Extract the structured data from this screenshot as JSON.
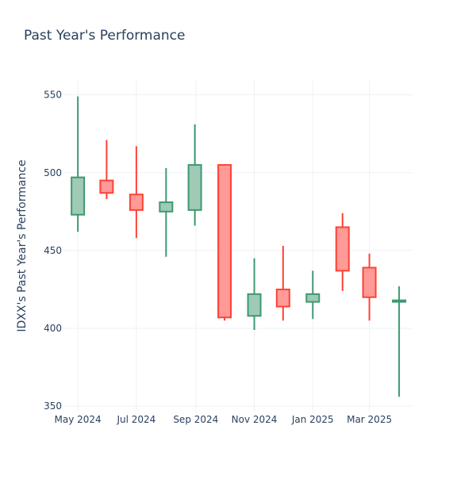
{
  "chart_data": {
    "type": "candlestick",
    "title": "Past Year's Performance",
    "xlabel": "",
    "ylabel": "IDXX's Past Year's Performance",
    "ylim": [
      346,
      560
    ],
    "yticks": [
      350,
      400,
      450,
      500,
      550
    ],
    "xticks": [
      {
        "label": "May 2024",
        "date": "2024-05-01"
      },
      {
        "label": "Jul 2024",
        "date": "2024-07-01"
      },
      {
        "label": "Sep 2024",
        "date": "2024-09-01"
      },
      {
        "label": "Nov 2024",
        "date": "2024-11-01"
      },
      {
        "label": "Jan 2025",
        "date": "2025-01-01"
      },
      {
        "label": "Mar 2025",
        "date": "2025-03-01"
      }
    ],
    "xrange": [
      "2024-04-16",
      "2025-04-15"
    ],
    "grid": true,
    "colors": {
      "increasing_line": "#3d9970",
      "increasing_fill": "#9ecab6",
      "decreasing_line": "#ff4136",
      "decreasing_fill": "#ff9a96",
      "text": "#2a3f5f",
      "grid": "#eef1f5"
    },
    "candles": [
      {
        "date": "2024-05-01",
        "open": 473,
        "high": 549,
        "low": 462,
        "close": 497
      },
      {
        "date": "2024-05-31",
        "open": 495,
        "high": 521,
        "low": 483,
        "close": 487
      },
      {
        "date": "2024-07-01",
        "open": 486,
        "high": 517,
        "low": 458,
        "close": 476
      },
      {
        "date": "2024-08-01",
        "open": 475,
        "high": 503,
        "low": 446,
        "close": 481
      },
      {
        "date": "2024-08-31",
        "open": 476,
        "high": 531,
        "low": 466,
        "close": 505
      },
      {
        "date": "2024-10-01",
        "open": 505,
        "high": 505,
        "low": 405,
        "close": 407
      },
      {
        "date": "2024-11-01",
        "open": 408,
        "high": 445,
        "low": 399,
        "close": 422
      },
      {
        "date": "2024-12-01",
        "open": 425,
        "high": 453,
        "low": 405,
        "close": 414
      },
      {
        "date": "2025-01-01",
        "open": 417,
        "high": 437,
        "low": 406,
        "close": 422
      },
      {
        "date": "2025-02-01",
        "open": 465,
        "high": 474,
        "low": 424,
        "close": 437
      },
      {
        "date": "2025-03-01",
        "open": 439,
        "high": 448,
        "low": 405,
        "close": 420
      },
      {
        "date": "2025-04-01",
        "open": 417,
        "high": 427,
        "low": 356,
        "close": 418
      }
    ]
  }
}
